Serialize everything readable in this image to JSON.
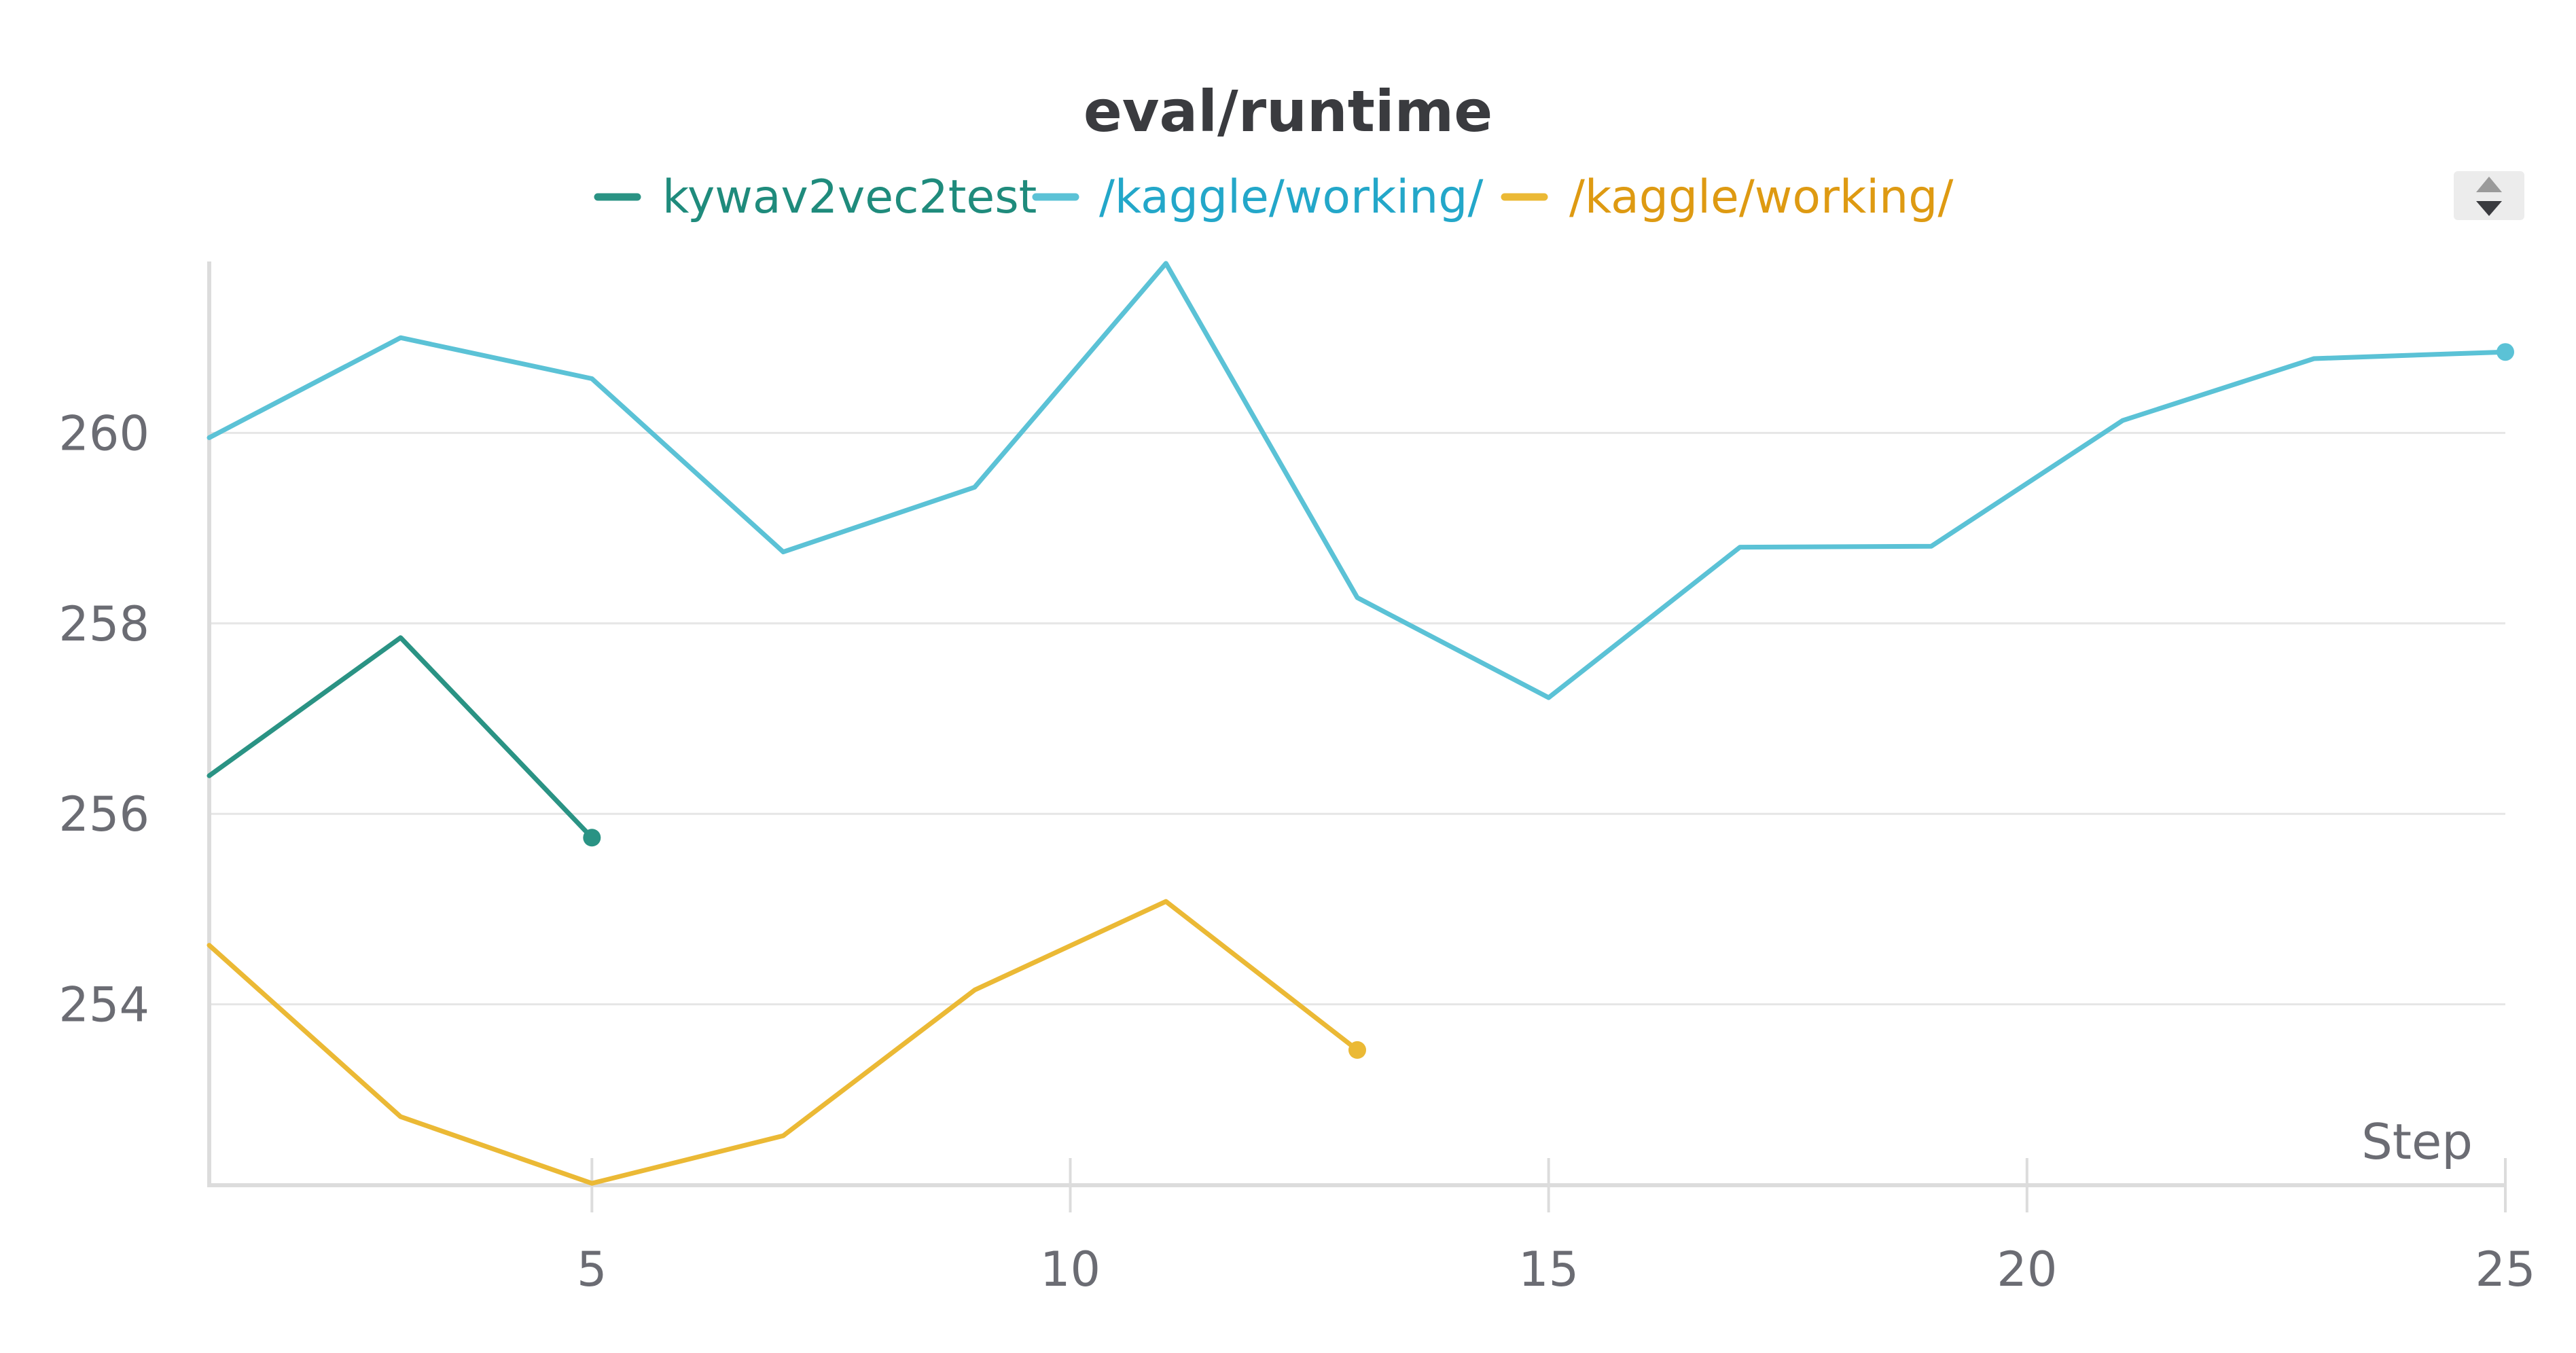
{
  "chart_data": {
    "type": "line",
    "title": "eval/runtime",
    "xlabel": "Step",
    "ylabel": "",
    "xlim": [
      1,
      25
    ],
    "ylim": [
      252.1,
      261.8
    ],
    "x_ticks": [
      5,
      10,
      15,
      20,
      25
    ],
    "y_ticks": [
      254,
      256,
      258,
      260
    ],
    "grid": true,
    "legend_position": "top",
    "series": [
      {
        "name": "kywav2vec2test",
        "color": "#2a9384",
        "text_color": "#1f8b7c",
        "x": [
          1,
          3,
          5
        ],
        "y": [
          256.4,
          257.85,
          255.75
        ]
      },
      {
        "name": "/kaggle/working/",
        "color": "#5bc2d6",
        "text_color": "#23a7c9",
        "x": [
          1,
          3,
          5,
          7,
          9,
          11,
          13,
          15,
          17,
          19,
          21,
          23,
          25
        ],
        "y": [
          259.95,
          261.0,
          260.57,
          258.75,
          259.43,
          261.78,
          258.27,
          257.22,
          258.8,
          258.81,
          260.13,
          260.78,
          260.85
        ]
      },
      {
        "name": "/kaggle/working/",
        "color": "#ebb935",
        "text_color": "#de9a12",
        "x": [
          1,
          3,
          5,
          7,
          9,
          11,
          13
        ],
        "y": [
          254.62,
          252.82,
          252.12,
          252.62,
          254.15,
          255.08,
          253.52
        ]
      }
    ]
  },
  "ui": {
    "scroll_up_icon": "triangle-up-icon",
    "scroll_down_icon": "triangle-down-icon"
  }
}
